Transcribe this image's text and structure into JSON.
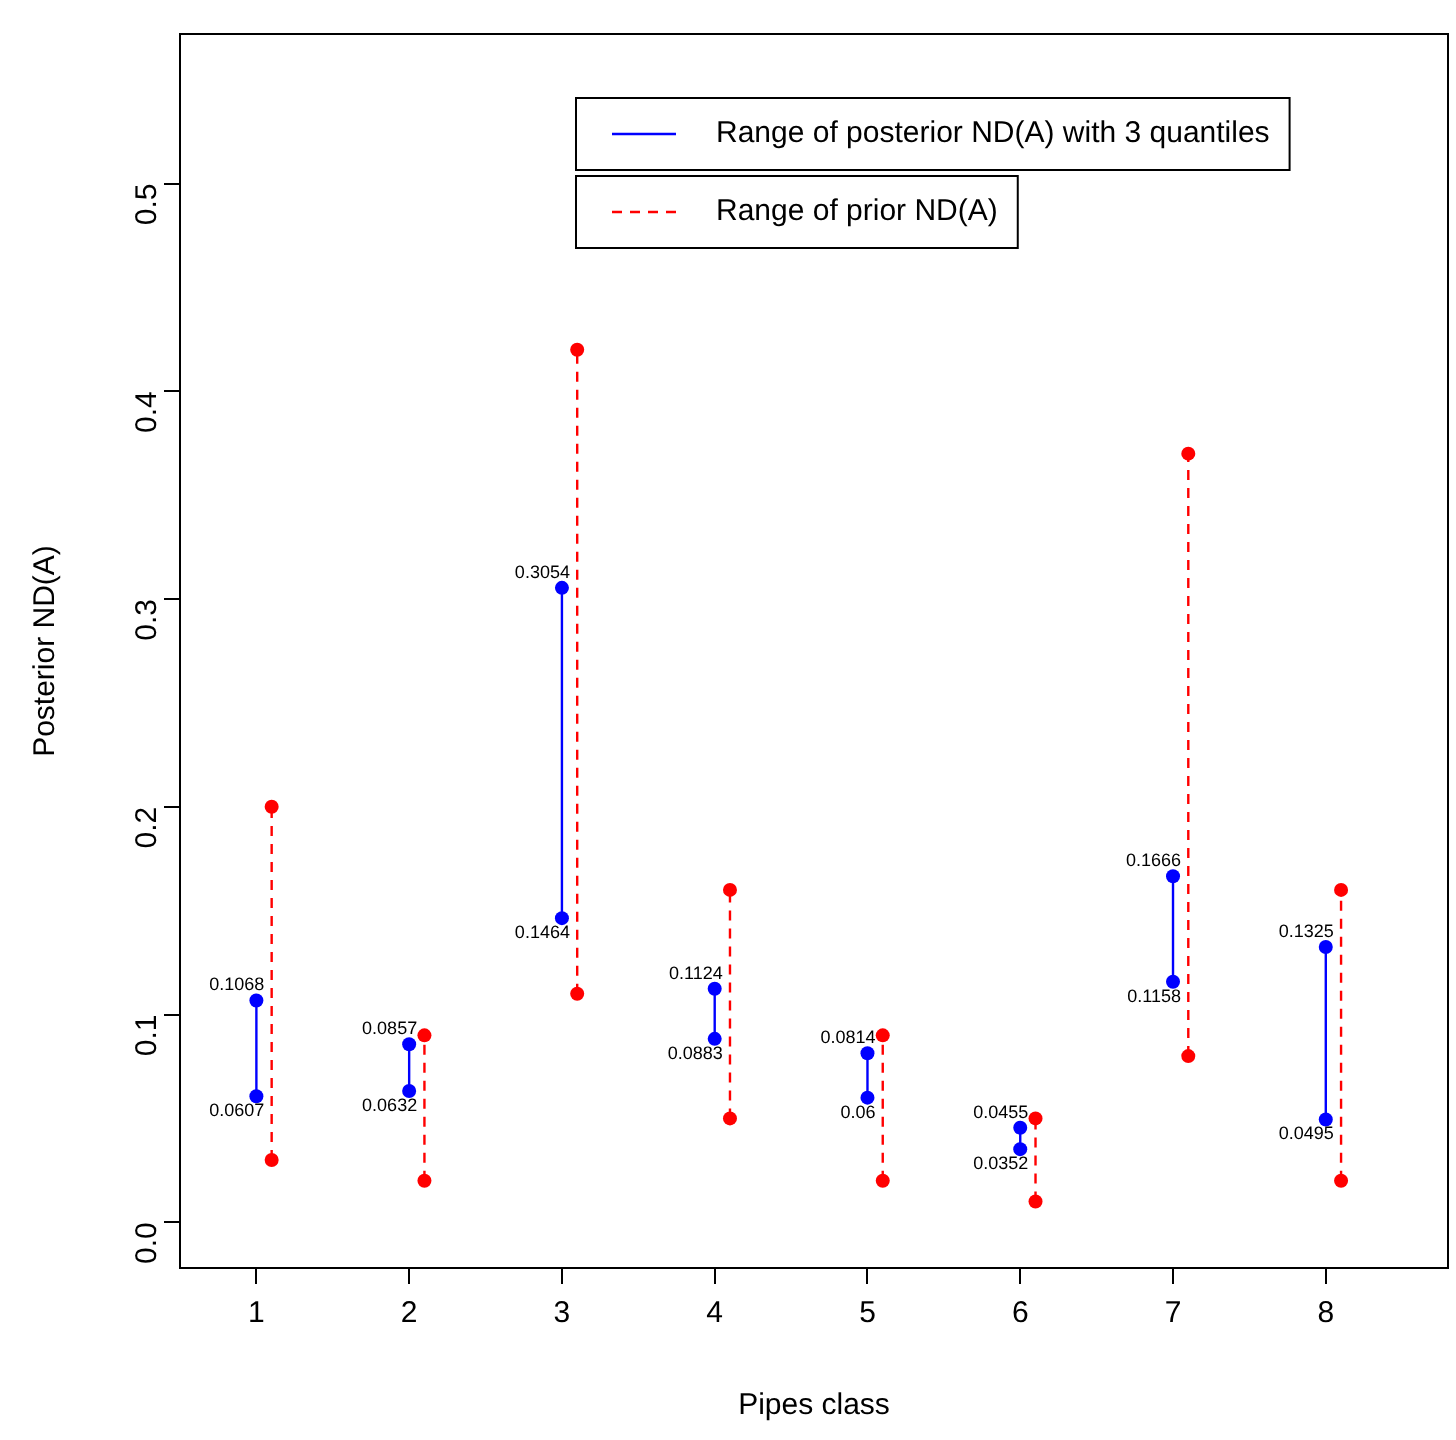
{
  "chart_data": {
    "type": "line",
    "xlabel": "Pipes class",
    "ylabel": "Posterior ND(A)",
    "xlim": [
      0.5,
      8.8
    ],
    "xticks": [
      1,
      2,
      3,
      4,
      5,
      6,
      7,
      8
    ],
    "ylim": [
      -0.022,
      0.572
    ],
    "yticks": [
      {
        "value": 0,
        "label": "0.0"
      },
      0.1,
      0.2,
      0.3,
      0.4,
      0.5
    ],
    "grid": false,
    "legend": "top right",
    "marker": "circle",
    "series": [
      {
        "name": "Range of posterior ND(A) with 3 quantiles",
        "color": "#0000ff",
        "line_style": "solid",
        "x": [
          1,
          1,
          2,
          2,
          3,
          3,
          4,
          4,
          5,
          5,
          6,
          6,
          7,
          7,
          8,
          8
        ],
        "values": [
          0.0607,
          0.1068,
          0.0632,
          0.0857,
          0.1464,
          0.3054,
          0.0883,
          0.1124,
          0.06,
          0.0814,
          0.0352,
          0.0455,
          0.1158,
          0.1666,
          0.0495,
          0.1325
        ],
        "value_labels": [
          "0.0607",
          "0.1068",
          "0.0632",
          "0.0857",
          "0.1464",
          "0.3054",
          "0.0883",
          "0.1124",
          "0.06",
          "0.0814",
          "0.0352",
          "0.0455",
          "0.1158",
          "0.1666",
          "0.0495",
          "0.1325"
        ]
      },
      {
        "name": "Range of prior ND(A)",
        "color": "#ff0000",
        "line_style": "dashed",
        "x": [
          1.1,
          1.1,
          2.1,
          2.1,
          3.1,
          3.1,
          4.1,
          4.1,
          5.1,
          5.1,
          6.1,
          6.1,
          7.1,
          7.1,
          8.1,
          8.1
        ],
        "values": [
          0.03,
          0.2,
          0.02,
          0.09,
          0.11,
          0.42,
          0.05,
          0.16,
          0.02,
          0.09,
          0.01,
          0.05,
          0.08,
          0.37,
          0.02,
          0.16
        ]
      }
    ]
  }
}
